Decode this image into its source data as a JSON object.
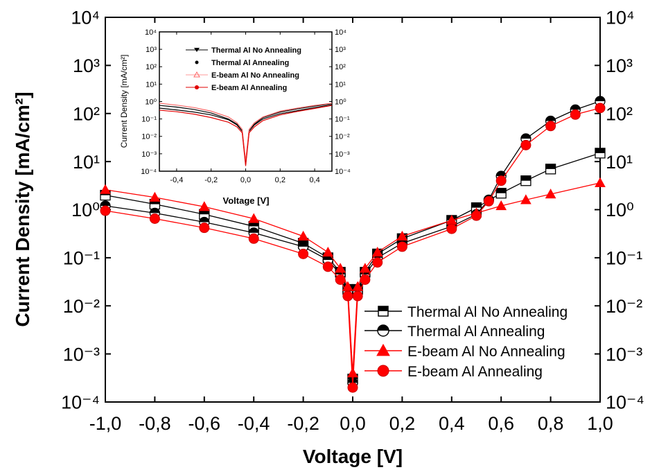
{
  "chart_data": [
    {
      "type": "scatter",
      "xlabel": "Voltage [V]",
      "ylabel": "Current Density [mA/cm²]",
      "xlim": [
        -1.0,
        1.0
      ],
      "ylim": [
        0.0001,
        10000
      ],
      "yscale": "log",
      "grid": false,
      "legend_placement": "bottom-right",
      "secondary_y_axis": true,
      "x_ticks": [
        "-1,0",
        "-0,8",
        "-0,6",
        "-0,4",
        "-0,2",
        "0,0",
        "0,2",
        "0,4",
        "0,6",
        "0,8",
        "1,0"
      ],
      "y_ticks": [
        "10⁻⁴",
        "10⁻³",
        "10⁻²",
        "10⁻¹",
        "10⁰",
        "10¹",
        "10²",
        "10³",
        "10⁴"
      ],
      "series": [
        {
          "name": "Thermal Al No Annealing",
          "color": "#000000",
          "marker": "half-square",
          "x": [
            -1.0,
            -0.8,
            -0.6,
            -0.4,
            -0.2,
            -0.1,
            -0.05,
            -0.02,
            0.0,
            0.02,
            0.05,
            0.1,
            0.2,
            0.4,
            0.5,
            0.6,
            0.7,
            0.8,
            1.0
          ],
          "y": [
            2.0,
            1.3,
            0.8,
            0.45,
            0.2,
            0.1,
            0.05,
            0.022,
            0.0003,
            0.022,
            0.05,
            0.12,
            0.25,
            0.6,
            1.1,
            2.2,
            4.0,
            7.0,
            15
          ]
        },
        {
          "name": "Thermal Al Annealing",
          "color": "#000000",
          "marker": "half-circle",
          "x": [
            -1.0,
            -0.8,
            -0.6,
            -0.4,
            -0.2,
            -0.1,
            -0.05,
            -0.02,
            0.0,
            0.02,
            0.05,
            0.1,
            0.2,
            0.4,
            0.5,
            0.55,
            0.6,
            0.7,
            0.8,
            0.9,
            1.0
          ],
          "y": [
            1.2,
            0.85,
            0.55,
            0.33,
            0.17,
            0.09,
            0.045,
            0.02,
            0.00025,
            0.02,
            0.045,
            0.1,
            0.2,
            0.45,
            0.8,
            1.6,
            5.0,
            30,
            70,
            120,
            180
          ]
        },
        {
          "name": "E-beam Al No Annealing",
          "color": "#ff0000",
          "marker": "half-triangle",
          "x": [
            -1.0,
            -0.8,
            -0.6,
            -0.4,
            -0.2,
            -0.1,
            -0.05,
            -0.02,
            0.0,
            0.02,
            0.05,
            0.1,
            0.2,
            0.4,
            0.5,
            0.6,
            0.7,
            0.8,
            1.0
          ],
          "y": [
            2.6,
            1.8,
            1.15,
            0.65,
            0.28,
            0.13,
            0.06,
            0.025,
            0.0004,
            0.025,
            0.06,
            0.13,
            0.28,
            0.6,
            0.85,
            1.2,
            1.6,
            2.1,
            3.6
          ]
        },
        {
          "name": "E-beam Al Annealing",
          "color": "#ff0000",
          "marker": "circle",
          "x": [
            -1.0,
            -0.8,
            -0.6,
            -0.4,
            -0.2,
            -0.1,
            -0.05,
            -0.02,
            0.0,
            0.02,
            0.05,
            0.1,
            0.2,
            0.4,
            0.5,
            0.55,
            0.6,
            0.7,
            0.8,
            0.9,
            1.0
          ],
          "y": [
            0.95,
            0.65,
            0.42,
            0.25,
            0.12,
            0.065,
            0.035,
            0.016,
            0.0002,
            0.016,
            0.035,
            0.08,
            0.17,
            0.4,
            0.75,
            1.5,
            4.0,
            22,
            55,
            95,
            130
          ]
        }
      ]
    },
    {
      "type": "line",
      "xlabel": "Voltage [V]",
      "ylabel": "Current Density [mA/cm²]",
      "xlim": [
        -0.5,
        0.5
      ],
      "ylim": [
        0.0001,
        10000
      ],
      "yscale": "log",
      "grid": false,
      "legend_placement": "top-right",
      "secondary_y_axis": true,
      "x_ticks": [
        "-0,4",
        "-0,2",
        "0,0",
        "0,2",
        "0,4"
      ],
      "y_ticks": [
        "10⁻⁴",
        "10⁻³",
        "10⁻²",
        "10⁻¹",
        "10⁰",
        "10¹",
        "10²",
        "10³",
        "10⁴"
      ],
      "series": [
        {
          "name": "Thermal Al No Annealing",
          "color": "#000000",
          "x": [
            -0.5,
            -0.4,
            -0.3,
            -0.2,
            -0.1,
            -0.05,
            -0.02,
            0.0,
            0.02,
            0.05,
            0.1,
            0.2,
            0.3,
            0.4,
            0.5
          ],
          "y": [
            0.6,
            0.48,
            0.35,
            0.22,
            0.1,
            0.05,
            0.02,
            0.0003,
            0.02,
            0.05,
            0.12,
            0.25,
            0.38,
            0.55,
            0.75
          ]
        },
        {
          "name": "Thermal Al Annealing",
          "color": "#000000",
          "x": [
            -0.5,
            -0.4,
            -0.3,
            -0.2,
            -0.1,
            -0.05,
            -0.02,
            0.0,
            0.02,
            0.05,
            0.1,
            0.2,
            0.3,
            0.4,
            0.5
          ],
          "y": [
            0.42,
            0.33,
            0.25,
            0.17,
            0.09,
            0.045,
            0.02,
            0.00025,
            0.02,
            0.045,
            0.1,
            0.2,
            0.3,
            0.45,
            0.65
          ]
        },
        {
          "name": "E-beam Al No Annealing",
          "color": "#ff6666",
          "x": [
            -0.5,
            -0.4,
            -0.3,
            -0.2,
            -0.1,
            -0.05,
            -0.02,
            0.0,
            0.02,
            0.05,
            0.1,
            0.2,
            0.3,
            0.4,
            0.5
          ],
          "y": [
            0.8,
            0.62,
            0.45,
            0.28,
            0.13,
            0.06,
            0.025,
            0.0004,
            0.025,
            0.06,
            0.13,
            0.28,
            0.42,
            0.6,
            0.8
          ]
        },
        {
          "name": "E-beam Al Annealing",
          "color": "#e00000",
          "x": [
            -0.5,
            -0.4,
            -0.3,
            -0.2,
            -0.1,
            -0.05,
            -0.02,
            0.0,
            0.02,
            0.05,
            0.1,
            0.2,
            0.3,
            0.4,
            0.5
          ],
          "y": [
            0.32,
            0.26,
            0.19,
            0.12,
            0.065,
            0.035,
            0.016,
            0.0002,
            0.016,
            0.035,
            0.08,
            0.17,
            0.27,
            0.4,
            0.6
          ]
        }
      ]
    }
  ]
}
